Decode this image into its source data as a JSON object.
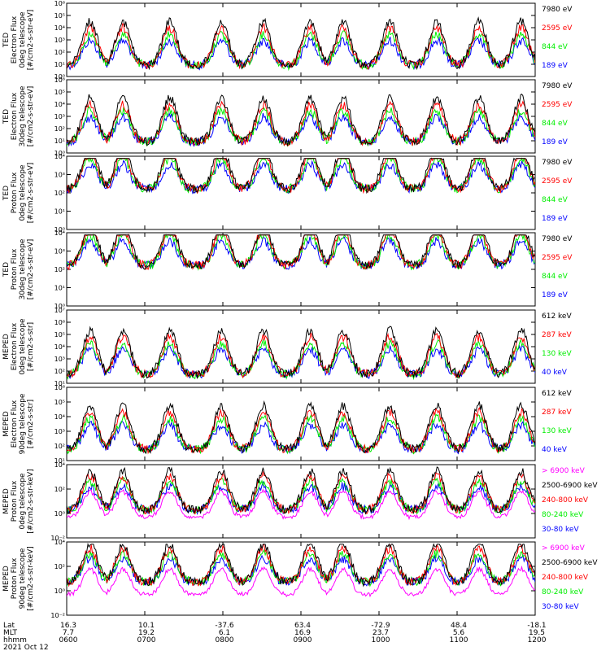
{
  "chart_data": {
    "type": "line",
    "title": "",
    "date_label": "2021 Oct 12",
    "colors": {
      "black": "#000000",
      "red": "#ff0000",
      "green": "#00ee00",
      "blue": "#0000ff",
      "magenta": "#ff00ff",
      "bg": "#ffffff"
    },
    "ephemeris": {
      "row_labels": [
        "Lat",
        "MLT",
        "hhmm"
      ],
      "columns": [
        {
          "lat": "16.3",
          "mlt": "7.7",
          "hhmm": "0600"
        },
        {
          "lat": "10.1",
          "mlt": "19.2",
          "hhmm": "0700"
        },
        {
          "lat": "-37.6",
          "mlt": "6.1",
          "hhmm": "0800"
        },
        {
          "lat": "63.4",
          "mlt": "16.9",
          "hhmm": "0900"
        },
        {
          "lat": "-72.9",
          "mlt": "23.7",
          "hhmm": "1000"
        },
        {
          "lat": "48.4",
          "mlt": "5.6",
          "hhmm": "1100"
        },
        {
          "lat": "-18.1",
          "mlt": "19.5",
          "hhmm": "1200"
        }
      ]
    },
    "panels": [
      {
        "ylabel": [
          "TED",
          "Electron Flux",
          "0deg telescope",
          "[#/cm2-s-str-eV]"
        ],
        "yticks": [
          "10⁶",
          "10⁵",
          "10⁴",
          "10³",
          "10²",
          "10¹",
          "10⁰"
        ],
        "ylog": [
          0,
          6
        ],
        "legend": [
          {
            "label": "7980 eV",
            "color": "black"
          },
          {
            "label": "2595 eV",
            "color": "red"
          },
          {
            "label": "844 eV",
            "color": "green"
          },
          {
            "label": "189 eV",
            "color": "blue"
          }
        ]
      },
      {
        "ylabel": [
          "TED",
          "Electron Flux",
          "30deg telescope",
          "[#/cm2-s-str-eV]"
        ],
        "yticks": [
          "10⁶",
          "10⁵",
          "10⁴",
          "10³",
          "10²",
          "10¹",
          "10⁰"
        ],
        "ylog": [
          0,
          6
        ],
        "legend": [
          {
            "label": "7980 eV",
            "color": "black"
          },
          {
            "label": "2595 eV",
            "color": "red"
          },
          {
            "label": "844 eV",
            "color": "green"
          },
          {
            "label": "189 eV",
            "color": "blue"
          }
        ]
      },
      {
        "ylabel": [
          "TED",
          "Proton Flux",
          "0deg telescope",
          "[#/cm2-s-str-eV]"
        ],
        "yticks": [
          "10⁴",
          "10³",
          "10²",
          "10¹",
          "10⁰"
        ],
        "ylog": [
          0,
          4
        ],
        "legend": [
          {
            "label": "7980 eV",
            "color": "black"
          },
          {
            "label": "2595 eV",
            "color": "red"
          },
          {
            "label": "844 eV",
            "color": "green"
          },
          {
            "label": "189 eV",
            "color": "blue"
          }
        ]
      },
      {
        "ylabel": [
          "TED",
          "Proton Flux",
          "30deg telescope",
          "[#/cm2-s-str-eV]"
        ],
        "yticks": [
          "10⁴",
          "10³",
          "10²",
          "10¹",
          "10⁰"
        ],
        "ylog": [
          0,
          4
        ],
        "legend": [
          {
            "label": "7980 eV",
            "color": "black"
          },
          {
            "label": "2595 eV",
            "color": "red"
          },
          {
            "label": "844 eV",
            "color": "green"
          },
          {
            "label": "189 eV",
            "color": "blue"
          }
        ]
      },
      {
        "ylabel": [
          "MEPED",
          "Electron Flux",
          "0deg telescope",
          "[#/cm2-s-str]"
        ],
        "yticks": [
          "10⁷",
          "10⁶",
          "10⁵",
          "10⁴",
          "10³",
          "10²",
          "10¹"
        ],
        "ylog": [
          1,
          7
        ],
        "legend": [
          {
            "label": "612 keV",
            "color": "black"
          },
          {
            "label": "287 keV",
            "color": "red"
          },
          {
            "label": "130 keV",
            "color": "green"
          },
          {
            "label": "40 keV",
            "color": "blue"
          }
        ]
      },
      {
        "ylabel": [
          "MEPED",
          "Electron Flux",
          "90deg telescope",
          "[#/cm2-s-str]"
        ],
        "yticks": [
          "10⁶",
          "10⁵",
          "10⁴",
          "10³",
          "10²",
          "10¹"
        ],
        "ylog": [
          1,
          6
        ],
        "legend": [
          {
            "label": "612 keV",
            "color": "black"
          },
          {
            "label": "287 keV",
            "color": "red"
          },
          {
            "label": "130 keV",
            "color": "green"
          },
          {
            "label": "40 keV",
            "color": "blue"
          }
        ]
      },
      {
        "ylabel": [
          "MEPED",
          "Proton Flux",
          "0deg telescope",
          "[#/cm2-s-str-keV]"
        ],
        "yticks": [
          "10⁴",
          "10²",
          "10⁰",
          "10⁻²"
        ],
        "ylog": [
          -3,
          5
        ],
        "legend": [
          {
            "label": "> 6900 keV",
            "color": "magenta"
          },
          {
            "label": "2500-6900 keV",
            "color": "black"
          },
          {
            "label": "240-800 keV",
            "color": "red"
          },
          {
            "label": "80-240 keV",
            "color": "green"
          },
          {
            "label": "30-80 keV",
            "color": "blue"
          }
        ]
      },
      {
        "ylabel": [
          "MEPED",
          "Proton Flux",
          "90deg telescope",
          "[#/cm2-s-str-keV]"
        ],
        "yticks": [
          "10⁴",
          "10²",
          "10⁰",
          "10⁻²"
        ],
        "ylog": [
          -3,
          5
        ],
        "legend": [
          {
            "label": "> 6900 keV",
            "color": "magenta"
          },
          {
            "label": "2500-6900 keV",
            "color": "black"
          },
          {
            "label": "240-800 keV",
            "color": "red"
          },
          {
            "label": "80-240 keV",
            "color": "green"
          },
          {
            "label": "30-80 keV",
            "color": "blue"
          }
        ]
      }
    ]
  }
}
